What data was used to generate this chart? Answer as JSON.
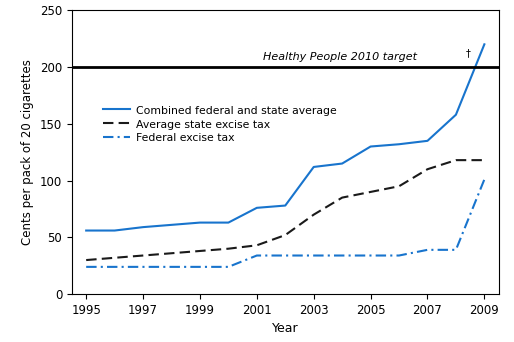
{
  "years": [
    1995,
    1996,
    1997,
    1998,
    1999,
    2000,
    2001,
    2002,
    2003,
    2004,
    2005,
    2006,
    2007,
    2008,
    2009
  ],
  "combined": [
    56,
    56,
    59,
    61,
    63,
    63,
    76,
    78,
    112,
    115,
    130,
    132,
    135,
    158,
    220
  ],
  "state_avg": [
    30,
    32,
    34,
    36,
    38,
    40,
    43,
    52,
    70,
    85,
    90,
    95,
    110,
    118,
    118
  ],
  "federal": [
    24,
    24,
    24,
    24,
    24,
    24,
    34,
    34,
    34,
    34,
    34,
    34,
    39,
    39,
    101
  ],
  "target_value": 200,
  "target_label_italic": "Healthy People 2010 target",
  "target_label_dagger": "†",
  "xlabel": "Year",
  "ylabel": "Cents per pack of 20 cigarettes",
  "ylim": [
    0,
    250
  ],
  "xlim": [
    1994.5,
    2009.5
  ],
  "yticks": [
    0,
    50,
    100,
    150,
    200,
    250
  ],
  "xticks": [
    1995,
    1997,
    1999,
    2001,
    2003,
    2005,
    2007,
    2009
  ],
  "combined_color": "#1874CD",
  "state_color": "#1a1a1a",
  "federal_color": "#1874CD",
  "combined_label": "Combined federal and state average",
  "state_label": "Average state excise tax",
  "federal_label": "Federal excise tax",
  "figsize": [
    5.14,
    3.42
  ],
  "dpi": 100
}
